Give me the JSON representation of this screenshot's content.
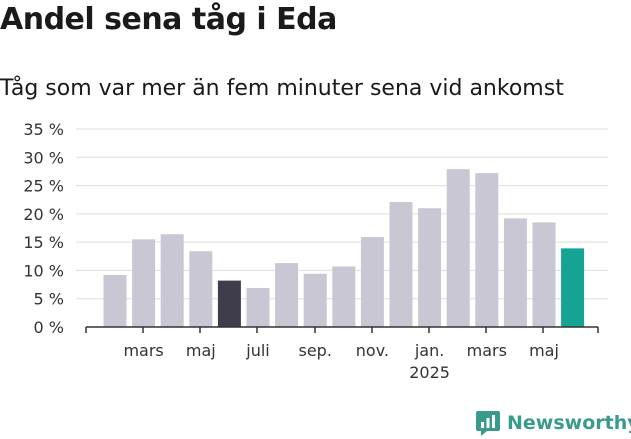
{
  "title": "Andel sena tåg i Eda",
  "subtitle": "Tåg som var mer än fem minuter sena vid ankomst",
  "brand": "Newsworthy",
  "colors": {
    "default_bar": "#c9c7d3",
    "highlight_dark": "#3f3d4c",
    "highlight_current": "#15a394",
    "grid": "#dddddd",
    "axis": "#333333",
    "brand": "#3a9a8c"
  },
  "chart_data": {
    "type": "bar",
    "title": "Andel sena tåg i Eda",
    "subtitle": "Tåg som var mer än fem minuter sena vid ankomst",
    "y_unit": "%",
    "ylim": [
      0,
      35
    ],
    "y_ticks": [
      0,
      5,
      10,
      15,
      20,
      25,
      30,
      35
    ],
    "y_tick_labels": [
      "0 %",
      "5 %",
      "10 %",
      "15 %",
      "20 %",
      "25 %",
      "30 %",
      "35 %"
    ],
    "grid": true,
    "values": [
      9.2,
      15.5,
      16.4,
      13.4,
      8.2,
      6.9,
      11.3,
      9.4,
      10.7,
      15.9,
      22.1,
      21.0,
      27.9,
      27.2,
      19.2,
      18.5,
      13.9
    ],
    "highlight": {
      "4": "highlight_dark",
      "16": "highlight_current"
    },
    "x_tick_labels": [
      {
        "index": 1,
        "lines": [
          "mars"
        ]
      },
      {
        "index": 3,
        "lines": [
          "maj"
        ]
      },
      {
        "index": 5,
        "lines": [
          "juli"
        ]
      },
      {
        "index": 7,
        "lines": [
          "sep."
        ]
      },
      {
        "index": 9,
        "lines": [
          "nov."
        ]
      },
      {
        "index": 11,
        "lines": [
          "jan.",
          "2025"
        ]
      },
      {
        "index": 13,
        "lines": [
          "mars"
        ]
      },
      {
        "index": 15,
        "lines": [
          "maj"
        ]
      }
    ]
  }
}
